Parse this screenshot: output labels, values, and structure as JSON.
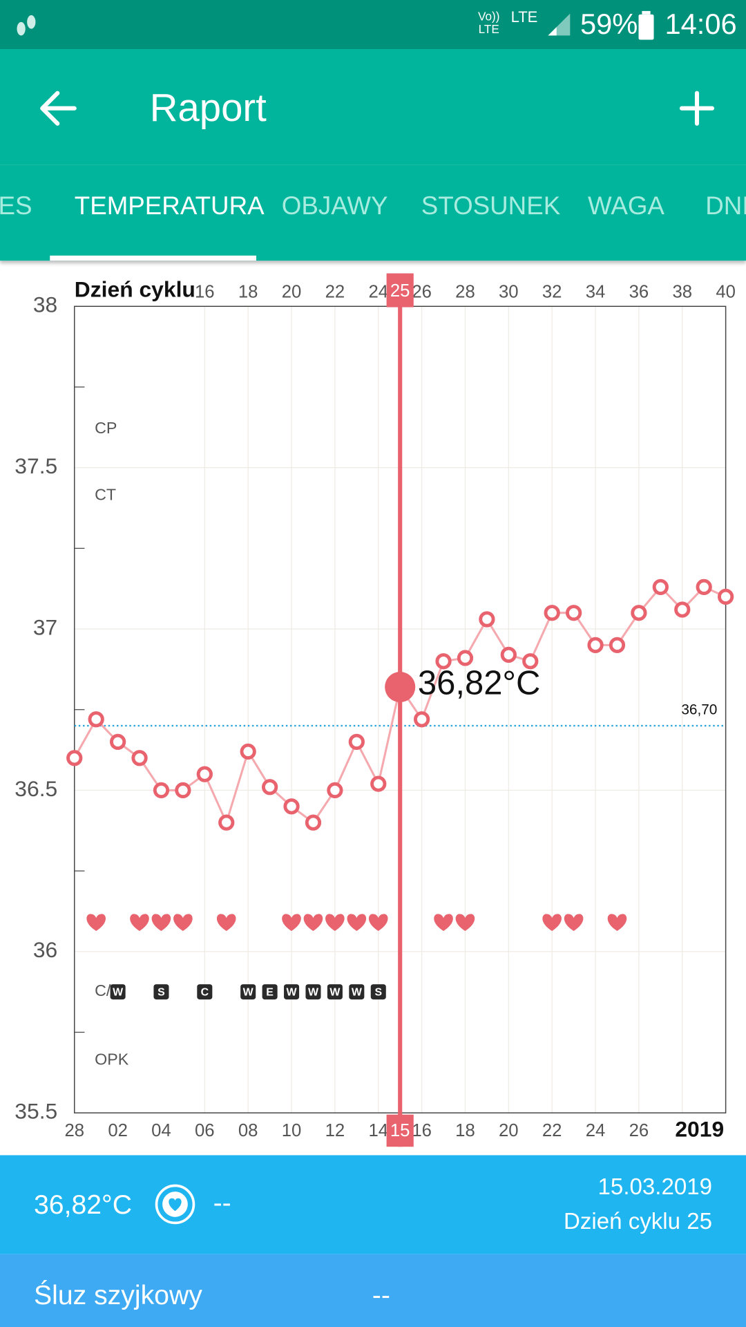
{
  "status_bar": {
    "network": "Vo)) LTE",
    "data": "LTE",
    "battery": "59%",
    "time": "14:06"
  },
  "app_bar": {
    "title": "Raport"
  },
  "tabs": [
    "ES",
    "TEMPERATURA",
    "OBJAWY",
    "STOSUNEK",
    "WAGA",
    "DNI"
  ],
  "chart_data": {
    "type": "line",
    "x_label": "Dzień cyklu",
    "x": [
      10,
      11,
      12,
      13,
      14,
      15,
      16,
      17,
      18,
      19,
      20,
      21,
      22,
      23,
      24,
      25,
      26,
      27,
      28,
      29,
      30,
      31,
      32,
      33,
      34,
      35,
      36,
      37,
      38,
      39,
      40
    ],
    "values": [
      36.6,
      36.72,
      36.65,
      36.6,
      36.5,
      36.5,
      36.55,
      36.4,
      36.62,
      36.51,
      36.45,
      36.4,
      36.5,
      36.65,
      36.52,
      36.82,
      36.72,
      36.9,
      36.91,
      37.03,
      36.92,
      36.9,
      37.05,
      37.05,
      36.95,
      36.95,
      37.05,
      37.13,
      37.06,
      37.13,
      37.1
    ],
    "color": "#e8636e",
    "line_color": "#f5a9ae",
    "xlim": [
      10,
      40
    ],
    "xticks": [
      16,
      18,
      20,
      22,
      24,
      26,
      28,
      30,
      32,
      34,
      36,
      38,
      40
    ],
    "x2ticks": [
      {
        "value": 10,
        "label": "28"
      },
      {
        "value": 12,
        "label": "02"
      },
      {
        "value": 14,
        "label": "04"
      },
      {
        "value": 16,
        "label": "06"
      },
      {
        "value": 18,
        "label": "08"
      },
      {
        "value": 20,
        "label": "10"
      },
      {
        "value": 22,
        "label": "12"
      },
      {
        "value": 24,
        "label": "14"
      },
      {
        "value": 26,
        "label": "16"
      },
      {
        "value": 28,
        "label": "18"
      },
      {
        "value": 30,
        "label": "20"
      },
      {
        "value": 32,
        "label": "22"
      },
      {
        "value": 34,
        "label": "24"
      },
      {
        "value": 36,
        "label": "26"
      }
    ],
    "year_label": "2019",
    "ylim": [
      35.5,
      38
    ],
    "yticks": [
      35.5,
      36,
      36.5,
      37,
      37.5,
      38
    ],
    "minor_yticks": [
      35.75,
      36.25,
      36.75,
      37.25,
      37.75
    ],
    "grid": true,
    "cover_line": {
      "value": 36.7,
      "label": "36,70"
    },
    "selected": {
      "x": 25,
      "bottom_label": "15",
      "value": 36.82,
      "value_label": "36,82°C"
    },
    "row_labels": [
      "CP",
      "CT",
      "C/",
      "OPK"
    ],
    "intercourse_days": [
      11,
      13,
      14,
      15,
      17,
      20,
      21,
      22,
      23,
      24,
      27,
      28,
      32,
      33,
      35
    ],
    "tests": [
      {
        "x": 12,
        "label": "W"
      },
      {
        "x": 14,
        "label": "S"
      },
      {
        "x": 16,
        "label": "C"
      },
      {
        "x": 18,
        "label": "W"
      },
      {
        "x": 19,
        "label": "E"
      },
      {
        "x": 20,
        "label": "W"
      },
      {
        "x": 21,
        "label": "W"
      },
      {
        "x": 22,
        "label": "W"
      },
      {
        "x": 23,
        "label": "W"
      },
      {
        "x": 24,
        "label": "S"
      }
    ]
  },
  "info": {
    "temperature": "36,82°C",
    "intercourse": "--",
    "date": "15.03.2019",
    "cycle_day": "Dzień cyklu 25"
  },
  "mucus": {
    "label": "Śluz szyjkowy",
    "value": "--"
  }
}
